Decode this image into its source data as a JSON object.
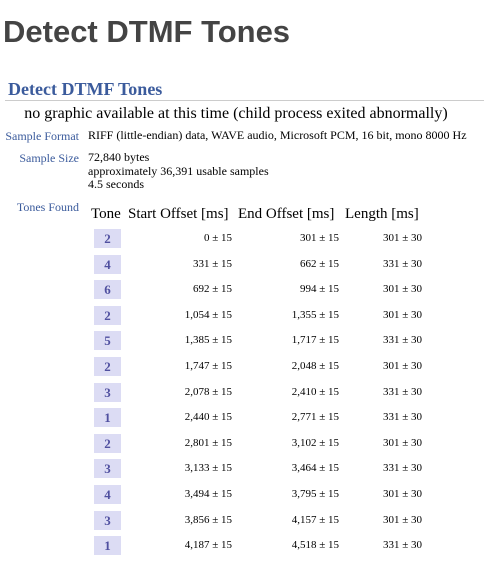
{
  "page": {
    "title": "Detect DTMF Tones"
  },
  "section": {
    "title": "Detect DTMF Tones",
    "graphic_message": "no graphic available at this time (child process exited abnormally)"
  },
  "info": {
    "sample_format_label": "Sample Format",
    "sample_format_value": "RIFF (little-endian) data, WAVE audio, Microsoft PCM, 16 bit, mono 8000 Hz",
    "sample_size_label": "Sample Size",
    "sample_size_bytes": "72,840 bytes",
    "sample_size_usable": "approximately 36,391 usable samples",
    "sample_size_seconds": "4.5 seconds",
    "tones_found_label": "Tones Found"
  },
  "table": {
    "headers": {
      "tone": "Tone",
      "start": "Start Offset [ms]",
      "end": "End Offset [ms]",
      "length": "Length [ms]"
    },
    "rows": [
      {
        "tone": "2",
        "start": "0 ± 15",
        "end": "301 ± 15",
        "length": "301 ± 30"
      },
      {
        "tone": "4",
        "start": "331 ± 15",
        "end": "662 ± 15",
        "length": "331 ± 30"
      },
      {
        "tone": "6",
        "start": "692 ± 15",
        "end": "994 ± 15",
        "length": "301 ± 30"
      },
      {
        "tone": "2",
        "start": "1,054 ± 15",
        "end": "1,355 ± 15",
        "length": "301 ± 30"
      },
      {
        "tone": "5",
        "start": "1,385 ± 15",
        "end": "1,717 ± 15",
        "length": "331 ± 30"
      },
      {
        "tone": "2",
        "start": "1,747 ± 15",
        "end": "2,048 ± 15",
        "length": "301 ± 30"
      },
      {
        "tone": "3",
        "start": "2,078 ± 15",
        "end": "2,410 ± 15",
        "length": "331 ± 30"
      },
      {
        "tone": "1",
        "start": "2,440 ± 15",
        "end": "2,771 ± 15",
        "length": "331 ± 30"
      },
      {
        "tone": "2",
        "start": "2,801 ± 15",
        "end": "3,102 ± 15",
        "length": "301 ± 30"
      },
      {
        "tone": "3",
        "start": "3,133 ± 15",
        "end": "3,464 ± 15",
        "length": "331 ± 30"
      },
      {
        "tone": "4",
        "start": "3,494 ± 15",
        "end": "3,795 ± 15",
        "length": "301 ± 30"
      },
      {
        "tone": "3",
        "start": "3,856 ± 15",
        "end": "4,157 ± 15",
        "length": "301 ± 30"
      },
      {
        "tone": "1",
        "start": "4,187 ± 15",
        "end": "4,518 ± 15",
        "length": "331 ± 30"
      }
    ]
  }
}
